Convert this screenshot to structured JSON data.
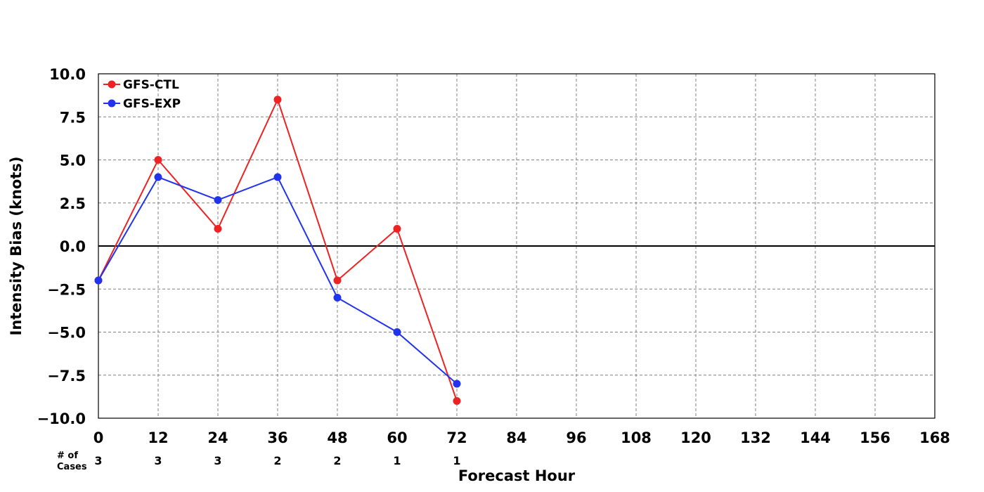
{
  "chart_data": {
    "type": "line",
    "xlabel": "Forecast Hour",
    "ylabel": "Intensity Bias (knots)",
    "xlim": [
      0,
      168
    ],
    "ylim": [
      -10,
      10
    ],
    "x_ticks": [
      0,
      12,
      24,
      36,
      48,
      60,
      72,
      84,
      96,
      108,
      120,
      132,
      144,
      156,
      168
    ],
    "y_ticks": [
      "−10.0",
      "−7.5",
      "−5.0",
      "−2.5",
      "0.0",
      "2.5",
      "5.0",
      "7.5",
      "10.0"
    ],
    "y_tick_values": [
      -10,
      -7.5,
      -5,
      -2.5,
      0,
      2.5,
      5,
      7.5,
      10
    ],
    "grid": true,
    "zero_line": true,
    "legend_position": "top-left",
    "series": [
      {
        "name": "GFS-CTL",
        "color": "#ee2222",
        "x": [
          0,
          12,
          24,
          36,
          48,
          60,
          72
        ],
        "values": [
          -2.0,
          5.0,
          1.0,
          8.5,
          -2.0,
          1.0,
          -9.0
        ]
      },
      {
        "name": "GFS-EXP",
        "color": "#2233ee",
        "x": [
          0,
          12,
          24,
          36,
          48,
          60,
          72
        ],
        "values": [
          -2.0,
          4.0,
          2.67,
          4.0,
          -3.0,
          -5.0,
          -8.0
        ]
      }
    ],
    "cases": {
      "label_line1": "# of",
      "label_line2": "Cases",
      "x": [
        0,
        12,
        24,
        36,
        48,
        60,
        72
      ],
      "values": [
        "3",
        "3",
        "3",
        "2",
        "2",
        "1",
        "1"
      ]
    }
  }
}
